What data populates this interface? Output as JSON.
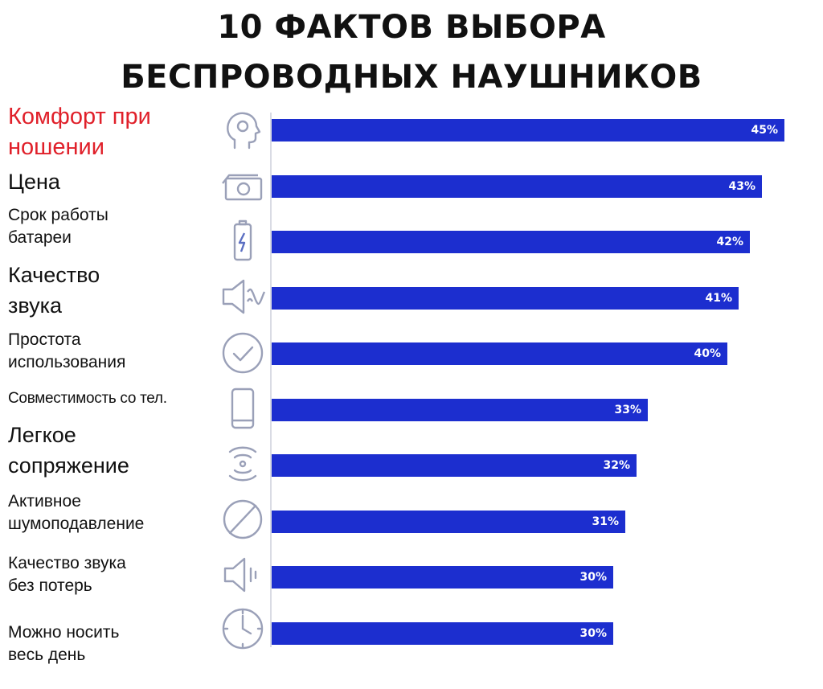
{
  "title_lines": [
    "10 ФАКТОВ ВЫБОРА",
    "БЕСПРОВОДНЫХ НАУШНИКОВ"
  ],
  "colors": {
    "bar": "#1c2ecf",
    "highlight_label": "#e0202a",
    "value_text": "#ffffff"
  },
  "chart_data": {
    "type": "bar",
    "orientation": "horizontal",
    "title": "10 ФАКТОВ ВЫБОРА БЕСПРОВОДНЫХ НАУШНИКОВ",
    "xlim": [
      0,
      45
    ],
    "categories": [
      "Комфорт при ношении",
      "Цена",
      "Срок работы батареи",
      "Качество звука",
      "Простота использования",
      "Совместимость со тел.",
      "Легкое сопряжение",
      "Активное шумоподавление",
      "Качество звука без потерь",
      "Можно носить весь день"
    ],
    "values": [
      45,
      43,
      42,
      41,
      40,
      33,
      32,
      31,
      30,
      30
    ],
    "value_labels": [
      "45%",
      "43%",
      "42%",
      "41%",
      "40%",
      "33%",
      "32%",
      "31%",
      "30%",
      "30%"
    ],
    "icons": [
      "head-icon",
      "money-icon",
      "battery-icon",
      "speaker-wave-icon",
      "checkmark-icon",
      "phone-icon",
      "signal-icon",
      "no-sign-icon",
      "speaker-icon",
      "clock-icon"
    ],
    "highlighted_index": 0
  },
  "labels": [
    [
      "Комфорт при",
      "ношении"
    ],
    [
      "Цена"
    ],
    [
      "Срок работы",
      "батареи"
    ],
    [
      "Качество",
      "звука"
    ],
    [
      "Простота",
      "использования"
    ],
    [
      "Совместимость со тел."
    ],
    [
      "Легкое",
      "сопряжение"
    ],
    [
      "Активное",
      "шумоподавление"
    ],
    [
      "Качество звука",
      "без потерь"
    ],
    [
      "Можно носить",
      "весь день"
    ]
  ]
}
